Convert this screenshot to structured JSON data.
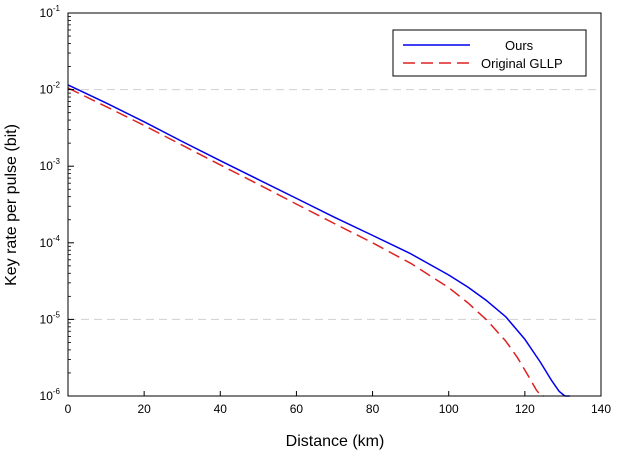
{
  "chart_data": {
    "type": "line",
    "title": "",
    "xlabel": "Distance (km)",
    "ylabel": "Key rate per pulse (bit)",
    "xlim": [
      0,
      140
    ],
    "ylim": [
      1e-06,
      0.1
    ],
    "yscale": "log",
    "grid": "dashed horizontal at 1e-2 and 1e-5",
    "x_ticks": [
      {
        "value": 0,
        "label": "0"
      },
      {
        "value": 20,
        "label": "20"
      },
      {
        "value": 40,
        "label": "40"
      },
      {
        "value": 60,
        "label": "60"
      },
      {
        "value": 80,
        "label": "80"
      },
      {
        "value": 100,
        "label": "100"
      },
      {
        "value": 120,
        "label": "120"
      },
      {
        "value": 140,
        "label": "140"
      }
    ],
    "y_ticks": [
      {
        "value": 0.1,
        "base": "10",
        "exp": "-1"
      },
      {
        "value": 0.01,
        "base": "10",
        "exp": "-2"
      },
      {
        "value": 0.001,
        "base": "10",
        "exp": "-3"
      },
      {
        "value": 0.0001,
        "base": "10",
        "exp": "-4"
      },
      {
        "value": 1e-05,
        "base": "10",
        "exp": "-5"
      },
      {
        "value": 1e-06,
        "base": "10",
        "exp": "-6"
      }
    ],
    "legend_position": "top-right",
    "series": [
      {
        "name": "Ours",
        "color": "#0000ee",
        "style": "solid",
        "x": [
          0,
          10,
          20,
          30,
          40,
          50,
          60,
          70,
          80,
          90,
          100,
          105,
          110,
          115,
          120,
          124,
          127,
          129,
          130.5,
          131.3,
          131.8
        ],
        "y": [
          0.0115,
          0.0067,
          0.0038,
          0.0021,
          0.00118,
          0.00067,
          0.00038,
          0.000215,
          0.000125,
          7.2e-05,
          3.8e-05,
          2.65e-05,
          1.75e-05,
          1.08e-05,
          5.5e-06,
          2.8e-06,
          1.6e-06,
          1.15e-06,
          1e-06,
          1e-06,
          1e-06
        ]
      },
      {
        "name": "Original GLLP",
        "color": "#dd2222",
        "style": "dashed",
        "x": [
          0,
          10,
          20,
          30,
          40,
          50,
          60,
          70,
          80,
          90,
          100,
          105,
          110,
          115,
          118,
          121,
          123,
          124.3,
          125
        ],
        "y": [
          0.0105,
          0.006,
          0.0034,
          0.00188,
          0.00104,
          0.00058,
          0.00032,
          0.000178,
          0.0001,
          5.4e-05,
          2.6e-05,
          1.65e-05,
          9.8e-06,
          5.2e-06,
          3.2e-06,
          1.8e-06,
          1.2e-06,
          1e-06,
          1e-06
        ]
      }
    ]
  }
}
